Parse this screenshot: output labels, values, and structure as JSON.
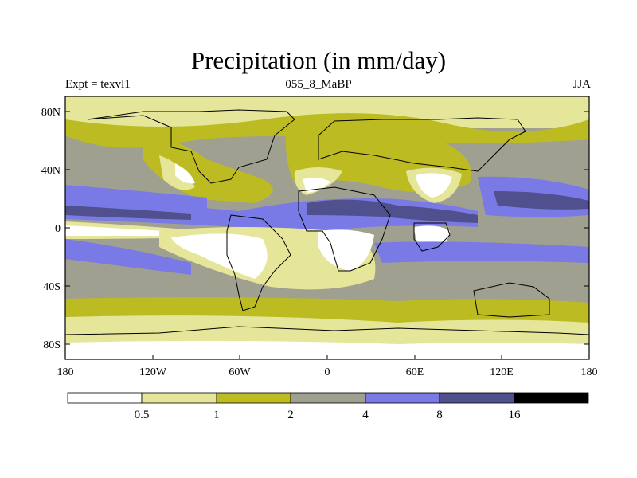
{
  "title": "Precipitation (in mm/day)",
  "subtitle_left": "Expt = texvl1",
  "subtitle_center": "055_8_MaBP",
  "subtitle_right": "JJA",
  "lat_ticks": [
    "80N",
    "40N",
    "0",
    "40S",
    "80S"
  ],
  "lon_ticks": [
    "180",
    "120W",
    "60W",
    "0",
    "60E",
    "120E",
    "180"
  ],
  "legend": {
    "labels": [
      "0.5",
      "1",
      "2",
      "4",
      "8",
      "16"
    ],
    "colors": [
      "#ffffff",
      "#e6e69a",
      "#bcbc22",
      "#a0a090",
      "#7a7ae6",
      "#50508e",
      "#000000"
    ]
  }
}
